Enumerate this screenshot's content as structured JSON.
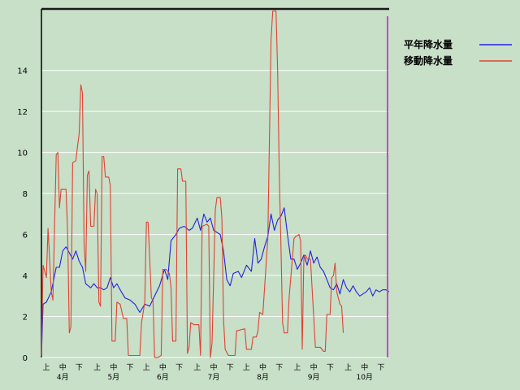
{
  "chart_data": {
    "type": "line",
    "ylim": [
      0,
      17
    ],
    "yticks": [
      "0",
      "2",
      "4",
      "6",
      "8",
      "10",
      "12",
      "14"
    ],
    "grid": true,
    "legend_position": "top-right",
    "xlim": [
      0,
      212
    ],
    "x_dekad_labels": [
      {
        "x": 3,
        "label": "上"
      },
      {
        "x": 13,
        "label": "中"
      },
      {
        "x": 23,
        "label": "下"
      },
      {
        "x": 34,
        "label": "上"
      },
      {
        "x": 44,
        "label": "中"
      },
      {
        "x": 54,
        "label": "下"
      },
      {
        "x": 64,
        "label": "上"
      },
      {
        "x": 74,
        "label": "中"
      },
      {
        "x": 84,
        "label": "下"
      },
      {
        "x": 95,
        "label": "上"
      },
      {
        "x": 105,
        "label": "中"
      },
      {
        "x": 115,
        "label": "下"
      },
      {
        "x": 125,
        "label": "上"
      },
      {
        "x": 135,
        "label": "中"
      },
      {
        "x": 145,
        "label": "下"
      },
      {
        "x": 156,
        "label": "上"
      },
      {
        "x": 166,
        "label": "中"
      },
      {
        "x": 176,
        "label": "下"
      },
      {
        "x": 187,
        "label": "上"
      },
      {
        "x": 197,
        "label": "中"
      },
      {
        "x": 207,
        "label": "下"
      }
    ],
    "x_month_labels": [
      {
        "x": 13,
        "label": "4月"
      },
      {
        "x": 44,
        "label": "5月"
      },
      {
        "x": 74,
        "label": "6月"
      },
      {
        "x": 105,
        "label": "7月"
      },
      {
        "x": 135,
        "label": "8月"
      },
      {
        "x": 166,
        "label": "9月"
      },
      {
        "x": 197,
        "label": "10月"
      }
    ],
    "vertical_marker": {
      "x": 211,
      "color": "#cc44cc"
    },
    "series": [
      {
        "name": "平年降水量",
        "color": "#2222dd",
        "points": [
          [
            0,
            0
          ],
          [
            1,
            2.6
          ],
          [
            3,
            2.7
          ],
          [
            6,
            3.2
          ],
          [
            9,
            4.4
          ],
          [
            11,
            4.4
          ],
          [
            13,
            5.2
          ],
          [
            15,
            5.4
          ],
          [
            17,
            5.1
          ],
          [
            19,
            4.8
          ],
          [
            21,
            5.2
          ],
          [
            23,
            4.7
          ],
          [
            25,
            4.4
          ],
          [
            27,
            3.6
          ],
          [
            30,
            3.4
          ],
          [
            32,
            3.6
          ],
          [
            34,
            3.4
          ],
          [
            36,
            3.4
          ],
          [
            38,
            3.3
          ],
          [
            40,
            3.4
          ],
          [
            42,
            3.9
          ],
          [
            44,
            3.4
          ],
          [
            46,
            3.6
          ],
          [
            48,
            3.3
          ],
          [
            51,
            2.9
          ],
          [
            54,
            2.8
          ],
          [
            57,
            2.6
          ],
          [
            60,
            2.2
          ],
          [
            63,
            2.6
          ],
          [
            66,
            2.5
          ],
          [
            69,
            3
          ],
          [
            72,
            3.5
          ],
          [
            75,
            4.3
          ],
          [
            77,
            3.8
          ],
          [
            79,
            5.7
          ],
          [
            82,
            6
          ],
          [
            84,
            6.3
          ],
          [
            87,
            6.4
          ],
          [
            90,
            6.2
          ],
          [
            92,
            6.3
          ],
          [
            95,
            6.8
          ],
          [
            97,
            6.2
          ],
          [
            99,
            7
          ],
          [
            101,
            6.6
          ],
          [
            103,
            6.8
          ],
          [
            105,
            6.2
          ],
          [
            107,
            6.1
          ],
          [
            109,
            6
          ],
          [
            111,
            5.2
          ],
          [
            113,
            3.8
          ],
          [
            115,
            3.5
          ],
          [
            117,
            4.1
          ],
          [
            120,
            4.2
          ],
          [
            122,
            3.9
          ],
          [
            125,
            4.5
          ],
          [
            128,
            4.2
          ],
          [
            130,
            5.8
          ],
          [
            132,
            4.6
          ],
          [
            134,
            4.8
          ],
          [
            136,
            5.4
          ],
          [
            138,
            5.9
          ],
          [
            140,
            7
          ],
          [
            142,
            6.2
          ],
          [
            144,
            6.7
          ],
          [
            146,
            6.9
          ],
          [
            148,
            7.3
          ],
          [
            150,
            6
          ],
          [
            152,
            4.8
          ],
          [
            154,
            4.8
          ],
          [
            156,
            4.3
          ],
          [
            158,
            4.6
          ],
          [
            160,
            5
          ],
          [
            162,
            4.5
          ],
          [
            164,
            5.2
          ],
          [
            166,
            4.6
          ],
          [
            168,
            4.9
          ],
          [
            170,
            4.4
          ],
          [
            172,
            4.2
          ],
          [
            174,
            3.8
          ],
          [
            176,
            3.4
          ],
          [
            178,
            3.3
          ],
          [
            180,
            3.6
          ],
          [
            182,
            3.1
          ],
          [
            184,
            3.8
          ],
          [
            186,
            3.4
          ],
          [
            188,
            3.2
          ],
          [
            190,
            3.5
          ],
          [
            192,
            3.2
          ],
          [
            194,
            3
          ],
          [
            196,
            3.1
          ],
          [
            198,
            3.2
          ],
          [
            200,
            3.4
          ],
          [
            202,
            3
          ],
          [
            204,
            3.3
          ],
          [
            206,
            3.2
          ],
          [
            208,
            3.3
          ],
          [
            210,
            3.3
          ],
          [
            212,
            3.2
          ]
        ]
      },
      {
        "name": "移動降水量",
        "color": "#dd4433",
        "points": [
          [
            0,
            0.1
          ],
          [
            1,
            4.5
          ],
          [
            3,
            3.9
          ],
          [
            4,
            6.3
          ],
          [
            6,
            3.2
          ],
          [
            7,
            2.8
          ],
          [
            9,
            9.9
          ],
          [
            10,
            10
          ],
          [
            11,
            7.3
          ],
          [
            12,
            8.2
          ],
          [
            15,
            8.2
          ],
          [
            16,
            6
          ],
          [
            17,
            1.2
          ],
          [
            18,
            1.5
          ],
          [
            19,
            9.5
          ],
          [
            21,
            9.6
          ],
          [
            22,
            10.3
          ],
          [
            23,
            10.9
          ],
          [
            24,
            13.3
          ],
          [
            25,
            12.9
          ],
          [
            26,
            5.5
          ],
          [
            27,
            4.2
          ],
          [
            28,
            8.9
          ],
          [
            29,
            9.1
          ],
          [
            30,
            6.4
          ],
          [
            32,
            6.4
          ],
          [
            33,
            8.2
          ],
          [
            34,
            8
          ],
          [
            35,
            2.7
          ],
          [
            36,
            2.5
          ],
          [
            37,
            9.8
          ],
          [
            38,
            9.8
          ],
          [
            39,
            8.8
          ],
          [
            41,
            8.8
          ],
          [
            42,
            8.4
          ],
          [
            43,
            0.8
          ],
          [
            45,
            0.8
          ],
          [
            46,
            2.7
          ],
          [
            48,
            2.6
          ],
          [
            50,
            1.9
          ],
          [
            52,
            1.9
          ],
          [
            53,
            0.1
          ],
          [
            56,
            0.1
          ],
          [
            60,
            0.1
          ],
          [
            61,
            1.7
          ],
          [
            63,
            2.7
          ],
          [
            64,
            6.6
          ],
          [
            65,
            6.6
          ],
          [
            66,
            4.9
          ],
          [
            67,
            2.9
          ],
          [
            68,
            2.8
          ],
          [
            69,
            0
          ],
          [
            71,
            0
          ],
          [
            73,
            0.1
          ],
          [
            74,
            4.3
          ],
          [
            76,
            4.3
          ],
          [
            78,
            4.1
          ],
          [
            79,
            3.4
          ],
          [
            80,
            0.8
          ],
          [
            82,
            0.8
          ],
          [
            83,
            9.2
          ],
          [
            85,
            9.2
          ],
          [
            86,
            8.6
          ],
          [
            88,
            8.6
          ],
          [
            89,
            0.2
          ],
          [
            90,
            0.5
          ],
          [
            91,
            1.7
          ],
          [
            93,
            1.6
          ],
          [
            96,
            1.6
          ],
          [
            97,
            0.1
          ],
          [
            98,
            6.4
          ],
          [
            101,
            6.5
          ],
          [
            102,
            6.4
          ],
          [
            103,
            0
          ],
          [
            104,
            0.7
          ],
          [
            106,
            7.2
          ],
          [
            107,
            7.8
          ],
          [
            109,
            7.8
          ],
          [
            110,
            6.8
          ],
          [
            111,
            1.9
          ],
          [
            112,
            0.4
          ],
          [
            114,
            0.1
          ],
          [
            118,
            0.1
          ],
          [
            119,
            1.3
          ],
          [
            124,
            1.4
          ],
          [
            125,
            0.4
          ],
          [
            128,
            0.4
          ],
          [
            129,
            1
          ],
          [
            131,
            1
          ],
          [
            132,
            1.3
          ],
          [
            133,
            2.2
          ],
          [
            135,
            2.1
          ],
          [
            138,
            5.8
          ],
          [
            140,
            15.5
          ],
          [
            141,
            16.9
          ],
          [
            143,
            16.9
          ],
          [
            144,
            14
          ],
          [
            145,
            9
          ],
          [
            146,
            5.4
          ],
          [
            147,
            1.7
          ],
          [
            148,
            1.2
          ],
          [
            150,
            1.2
          ],
          [
            151,
            2.9
          ],
          [
            154,
            5.8
          ],
          [
            155,
            5.9
          ],
          [
            157,
            6
          ],
          [
            158,
            5.7
          ],
          [
            159,
            0.4
          ],
          [
            160,
            4.9
          ],
          [
            161,
            5
          ],
          [
            162,
            4.8
          ],
          [
            164,
            4.8
          ],
          [
            166,
            2
          ],
          [
            167,
            0.5
          ],
          [
            170,
            0.5
          ],
          [
            172,
            0.3
          ],
          [
            173,
            0.3
          ],
          [
            174,
            2.1
          ],
          [
            176,
            2.1
          ],
          [
            177,
            3.9
          ],
          [
            178,
            4
          ],
          [
            179,
            4.6
          ],
          [
            180,
            3.2
          ],
          [
            182,
            2.6
          ],
          [
            183,
            2.5
          ],
          [
            184,
            1.2
          ]
        ]
      }
    ]
  }
}
